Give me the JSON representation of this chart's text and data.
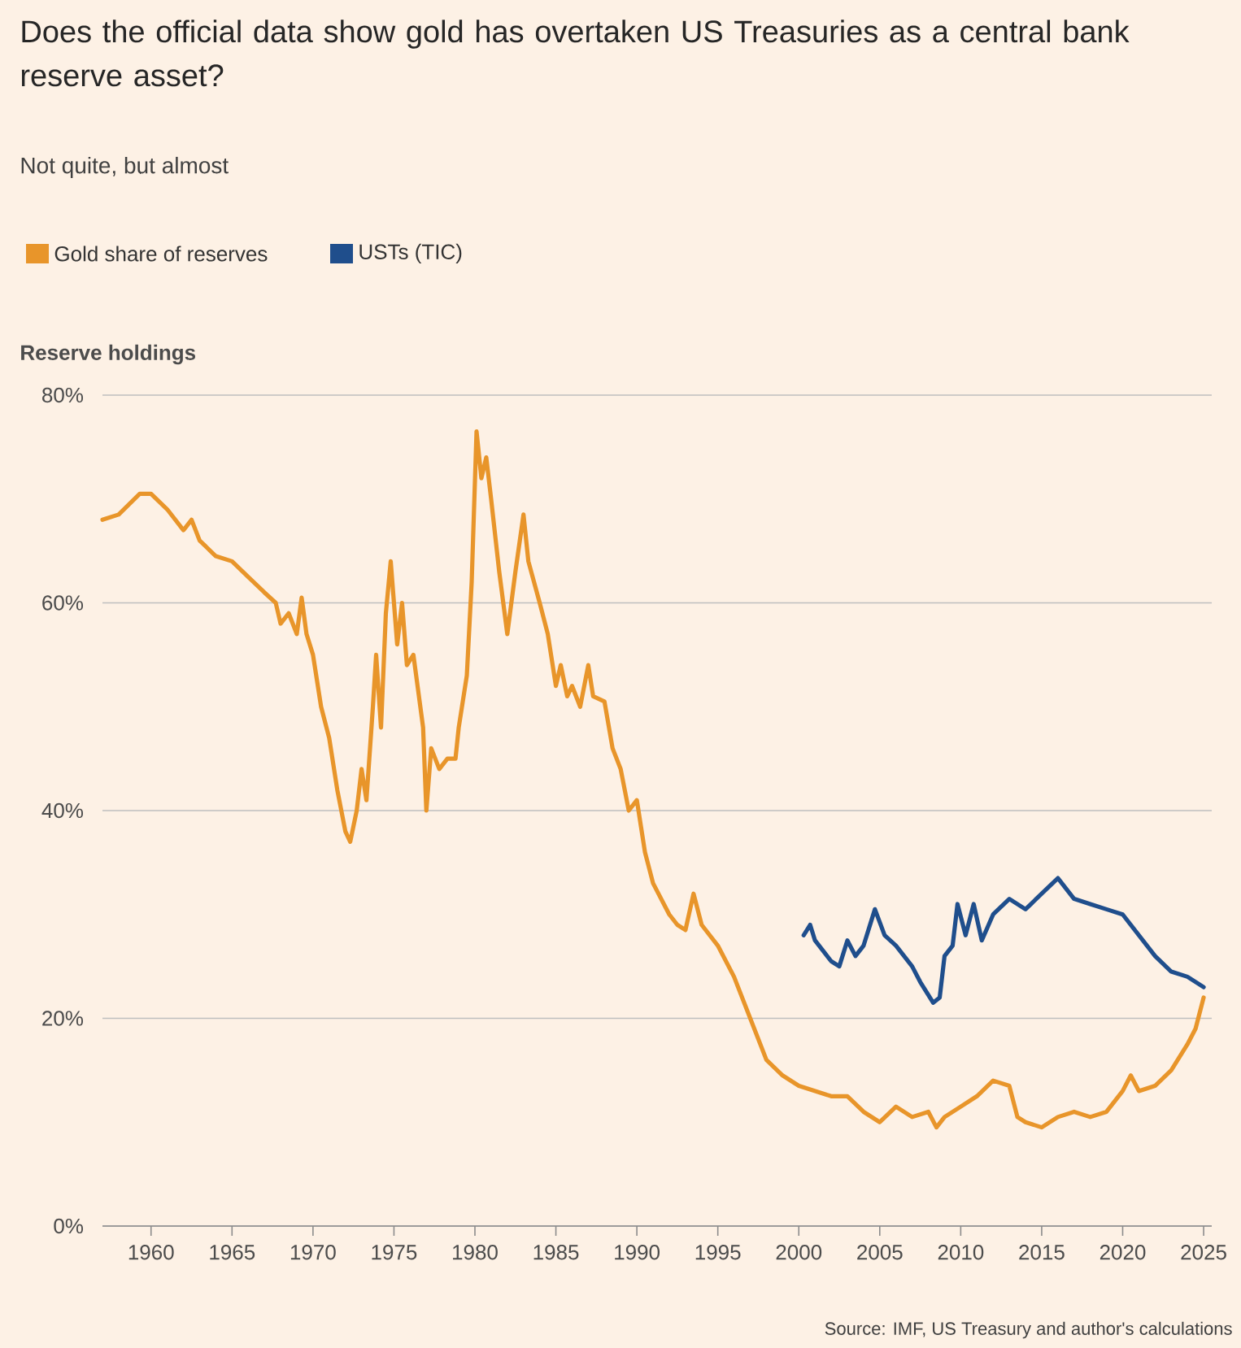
{
  "chart_data": {
    "type": "line",
    "title": "Does the official data show gold has overtaken US Treasuries as a central bank reserve asset?",
    "subtitle": "Not quite, but almost",
    "ylabel": "Reserve holdings",
    "annotations": [
      "Source: IMF, US Treasury and author's calculations"
    ],
    "legend": "top left",
    "grid": "y",
    "xlim": [
      1957,
      2025.5
    ],
    "xticks": [
      1960,
      1965,
      1970,
      1975,
      1980,
      1985,
      1990,
      1995,
      2000,
      2005,
      2010,
      2015,
      2020,
      2025
    ],
    "ylim": [
      0,
      80
    ],
    "yticks": [
      {
        "value": 0,
        "label": "0%"
      },
      {
        "value": 20,
        "label": "20%"
      },
      {
        "value": 40,
        "label": "40%"
      },
      {
        "value": 60,
        "label": "60%"
      },
      {
        "value": 80,
        "label": "80%"
      }
    ],
    "series": [
      {
        "name": "Gold share of reserves",
        "color": "#e8952a",
        "x": [
          1957,
          1958,
          1959.3,
          1960,
          1961,
          1962,
          1962.5,
          1963,
          1964,
          1965,
          1966,
          1967,
          1967.7,
          1968,
          1968.5,
          1969,
          1969.3,
          1969.6,
          1970,
          1970.5,
          1971,
          1971.5,
          1972,
          1972.3,
          1972.7,
          1973,
          1973.3,
          1973.7,
          1973.9,
          1974.2,
          1974.5,
          1974.8,
          1975.2,
          1975.5,
          1975.8,
          1976.2,
          1976.8,
          1977,
          1977.3,
          1977.8,
          1978.3,
          1978.8,
          1979,
          1979.5,
          1979.8,
          1980.1,
          1980.4,
          1980.7,
          1981,
          1981.5,
          1982,
          1982.5,
          1983,
          1983.3,
          1984,
          1984.5,
          1985,
          1985.3,
          1985.7,
          1986,
          1986.5,
          1987,
          1987.3,
          1988,
          1988.5,
          1989,
          1989.5,
          1990,
          1990.5,
          1991,
          1992,
          1992.5,
          1993,
          1993.5,
          1994,
          1995,
          1996,
          1997,
          1998,
          1999,
          2000,
          2002,
          2003,
          2004,
          2005,
          2006,
          2007,
          2008,
          2008.5,
          2009,
          2010,
          2011,
          2012,
          2013,
          2013.5,
          2014,
          2015,
          2016,
          2017,
          2018,
          2019,
          2020,
          2020.5,
          2021,
          2022,
          2023,
          2024,
          2024.5,
          2025
        ],
        "values": [
          68,
          68.5,
          70.5,
          70.5,
          69,
          67,
          68,
          66,
          64.5,
          64,
          62.5,
          61,
          60,
          58,
          59,
          57,
          60.5,
          57,
          55,
          50,
          47,
          42,
          38,
          37,
          40,
          44,
          41,
          50,
          55,
          48,
          59,
          64,
          56,
          60,
          54,
          55,
          48,
          40,
          46,
          44,
          45,
          45,
          48,
          53,
          62,
          76.5,
          72,
          74,
          70,
          63,
          57,
          63,
          68.5,
          64,
          60,
          57,
          52,
          54,
          51,
          52,
          50,
          54,
          51,
          50.5,
          46,
          44,
          40,
          41,
          36,
          33,
          30,
          29,
          28.5,
          32,
          29,
          27,
          24,
          20,
          16,
          14.5,
          13.5,
          12.5,
          12.5,
          11,
          10,
          11.5,
          10.5,
          11,
          9.5,
          10.5,
          11.5,
          12.5,
          14,
          13.5,
          10.5,
          10,
          9.5,
          10.5,
          11,
          10.5,
          11,
          13,
          14.5,
          13,
          13.5,
          15,
          17.5,
          19,
          22
        ]
      },
      {
        "name": "USTs (TIC)",
        "color": "#1f4e8c",
        "x": [
          2000.3,
          2000.7,
          2001,
          2002,
          2002.5,
          2003,
          2003.5,
          2004,
          2004.7,
          2005.3,
          2006,
          2007,
          2007.5,
          2008.3,
          2008.7,
          2009,
          2009.5,
          2009.8,
          2010.3,
          2010.8,
          2011.3,
          2012,
          2013,
          2014,
          2015,
          2016,
          2017,
          2018,
          2019,
          2020,
          2021,
          2022,
          2023,
          2024,
          2025
        ],
        "values": [
          28,
          29,
          27.5,
          25.5,
          25,
          27.5,
          26,
          27,
          30.5,
          28,
          27,
          25,
          23.5,
          21.5,
          22,
          26,
          27,
          31,
          28,
          31,
          27.5,
          30,
          31.5,
          30.5,
          32,
          33.5,
          31.5,
          31,
          30.5,
          30,
          28,
          26,
          24.5,
          24,
          23
        ]
      }
    ]
  }
}
